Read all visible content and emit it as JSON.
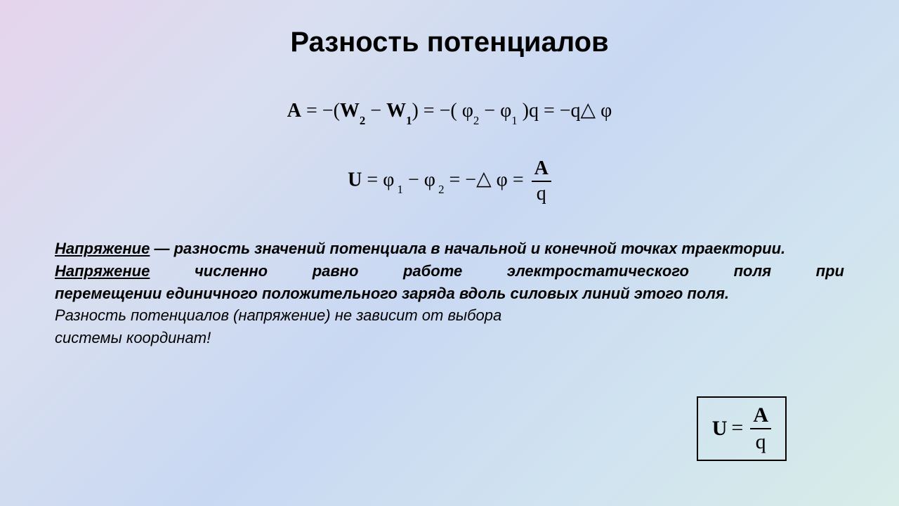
{
  "title": {
    "text": "Разность потенциалов",
    "fontsize": 40,
    "color": "#000000"
  },
  "formulas": {
    "line1": {
      "A": "A",
      "eq1": " = −(",
      "W2": "W",
      "s2": "2",
      "mid": " − ",
      "W1": "W",
      "s1": "1",
      "close1": ") = −( ",
      "phi2": "φ",
      "sp2": "2",
      "mid2": " − ",
      "phi1": "φ",
      "sp1": "1",
      "close2": " )q = −q",
      "tri": "△",
      "dphi": " φ",
      "fontsize": 28
    },
    "line2": {
      "U": "U",
      "eq": " = ",
      "phi1": "φ",
      "sp1": " 1",
      "mid": " − ",
      "phi2": "φ",
      "sp2": " 2",
      "eq2": " = −",
      "tri": "△",
      "dphi": " φ = ",
      "frac_num": "A",
      "frac_den": "q",
      "fontsize": 28
    }
  },
  "paragraph": {
    "fontsize": 22,
    "p1_term": "Напряжение",
    "p1_rest": " — разность значений потенциала в начальной и конечной точках траектории.",
    "p2_term": "Напряжение",
    "p2_line1_rest": " численно равно работе электростатического поля при",
    "p2_line2": "перемещении единичного положительного заряда вдоль силовых линий этого поля.",
    "p3_line1": "Разность потенциалов (напряжение) не зависит от выбора",
    "p3_line2": "системы координат!"
  },
  "boxed_formula": {
    "U": "U",
    "eq": "=",
    "num": "A",
    "den": "q",
    "fontsize": 30,
    "border_color": "#000000"
  },
  "colors": {
    "text": "#000000",
    "bg_stops": [
      "#e6d4ec",
      "#d8dff0",
      "#c9d8f2",
      "#d0e3f0",
      "#d8ece8"
    ]
  }
}
